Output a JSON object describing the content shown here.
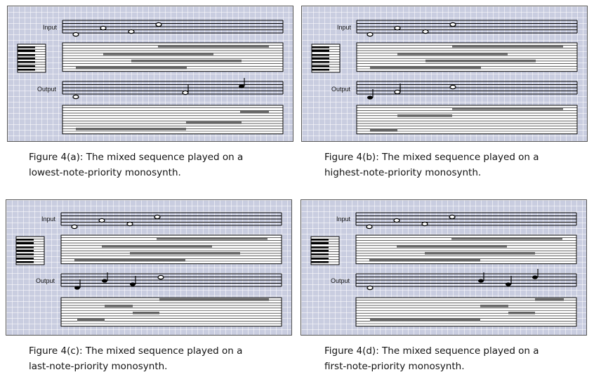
{
  "labels": {
    "input": "Input",
    "output": "Output"
  },
  "figures": [
    {
      "id": "a",
      "caption_line1": "Figure 4(a): The mixed sequence played on a",
      "caption_line2": "lowest-note-priority monosynth.",
      "output_kind": "lowest"
    },
    {
      "id": "b",
      "caption_line1": "Figure 4(b): The mixed sequence played on a",
      "caption_line2": "highest-note-priority monosynth.",
      "output_kind": "highest"
    },
    {
      "id": "c",
      "caption_line1": "Figure 4(c): The mixed sequence played on a",
      "caption_line2": "last-note-priority monosynth.",
      "output_kind": "last"
    },
    {
      "id": "d",
      "caption_line1": "Figure 4(d): The mixed sequence played on a",
      "caption_line2": "first-note-priority monosynth.",
      "output_kind": "first"
    }
  ],
  "colors": {
    "panel_bg": "#c9cde0",
    "note_bar": "#666666",
    "ink": "#000000"
  }
}
